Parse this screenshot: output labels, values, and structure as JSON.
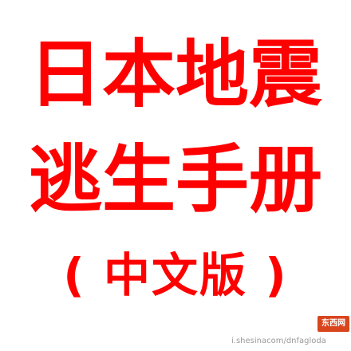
{
  "poster": {
    "line1": "日本地震",
    "line2": "逃生手册",
    "line3": "( 中文版 )"
  },
  "watermark": {
    "logo_text": "东西网",
    "url": "i.shesinacom/dnfagloda"
  },
  "colors": {
    "title": "#ff0000",
    "background": "#ffffff",
    "watermark_logo": "#d9461e"
  }
}
